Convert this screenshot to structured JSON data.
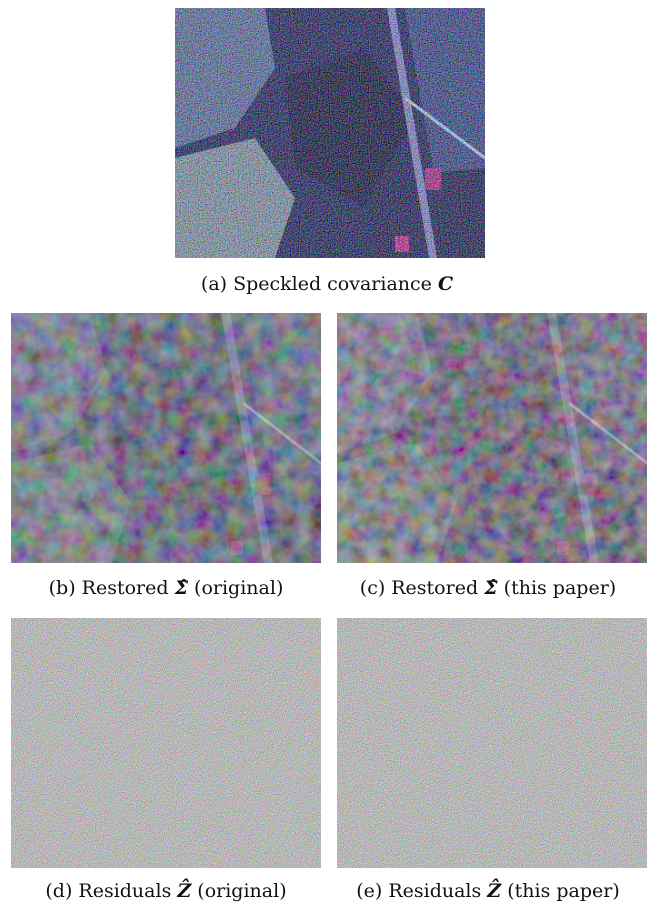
{
  "figure": {
    "panels": [
      {
        "id": "a",
        "tag": "(a)",
        "caption_text": "Speckled covariance",
        "math": "C",
        "suffix": ""
      },
      {
        "id": "b",
        "tag": "(b)",
        "caption_text": "Restored",
        "math": "Σ̂",
        "suffix": "(original)"
      },
      {
        "id": "c",
        "tag": "(c)",
        "caption_text": "Restored",
        "math": "Σ̂",
        "suffix": "(this paper)"
      },
      {
        "id": "d",
        "tag": "(d)",
        "caption_text": "Residuals",
        "math": "Ẑ",
        "suffix": "(original)"
      },
      {
        "id": "e",
        "tag": "(e)",
        "caption_text": "Residuals",
        "math": "Ẑ",
        "suffix": "(this paper)"
      }
    ]
  },
  "colors": {
    "sar_dark": "#1d1f3a",
    "sar_mid": "#3a4468",
    "noise_base": "#7f8a8a"
  }
}
